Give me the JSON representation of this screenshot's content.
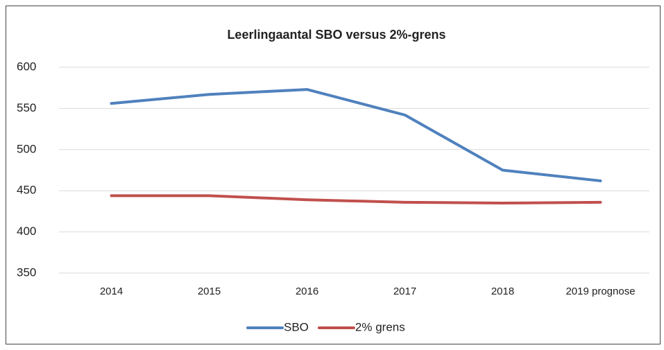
{
  "chart_data": {
    "type": "line",
    "title": "Leerlingaantal SBO versus 2%-grens",
    "categories": [
      "2014",
      "2015",
      "2016",
      "2017",
      "2018",
      "2019 prognose"
    ],
    "series": [
      {
        "name": "SBO",
        "color": "#4f81bd",
        "values": [
          556,
          567,
          573,
          542,
          475,
          462
        ]
      },
      {
        "name": "2% grens",
        "color": "#c0504d",
        "values": [
          444,
          444,
          439,
          436,
          435,
          436
        ]
      }
    ],
    "ylim": [
      350,
      600
    ],
    "yticks": [
      350,
      400,
      450,
      500,
      550,
      600
    ],
    "grid": true,
    "legend": "bottom"
  }
}
